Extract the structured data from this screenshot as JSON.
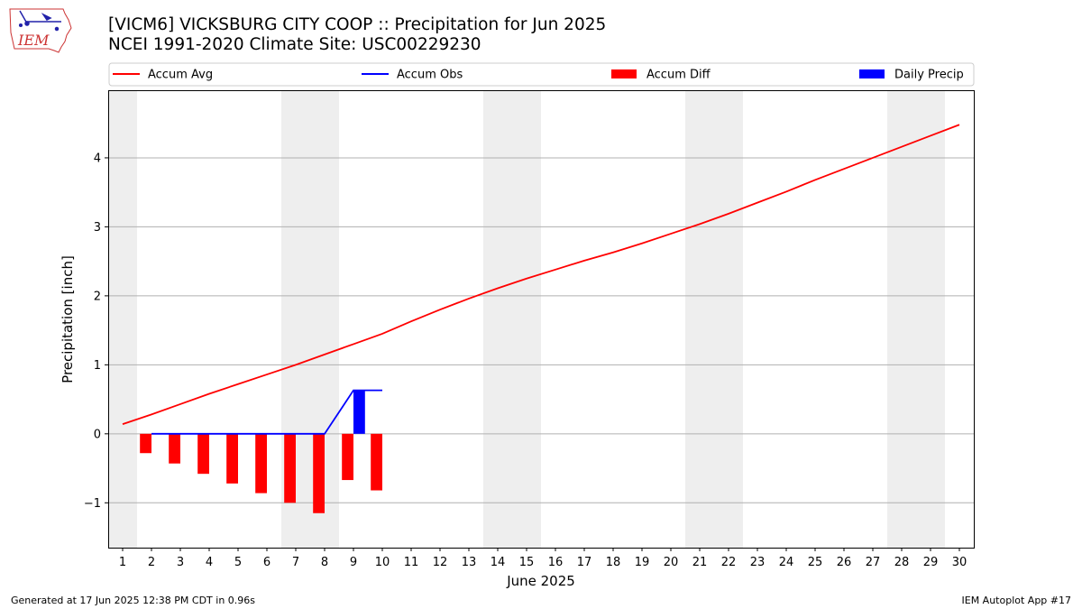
{
  "header": {
    "title_line1": "[VICM6] VICKSBURG CITY COOP :: Precipitation for Jun 2025",
    "title_line2": "NCEI 1991-2020 Climate Site: USC00229230",
    "logo_text": "IEM"
  },
  "footer": {
    "left": "Generated at 17 Jun 2025 12:38 PM CDT in 0.96s",
    "right": "IEM Autoplot App #17"
  },
  "colors": {
    "accum_avg": "#ff0000",
    "accum_obs": "#0000ff",
    "accum_diff": "#ff0000",
    "daily_precip": "#0000ff",
    "weekend_band": "#eeeeee",
    "grid": "#b0b0b0"
  },
  "chart_data": {
    "type": "line",
    "title": "[VICM6] VICKSBURG CITY COOP :: Precipitation for Jun 2025",
    "subtitle": "NCEI 1991-2020 Climate Site: USC00229230",
    "xlabel": "June 2025",
    "ylabel": "Precipitation [inch]",
    "xlim": [
      0.5,
      30.5
    ],
    "ylim": [
      -1.65,
      4.98
    ],
    "x": [
      1,
      2,
      3,
      4,
      5,
      6,
      7,
      8,
      9,
      10,
      11,
      12,
      13,
      14,
      15,
      16,
      17,
      18,
      19,
      20,
      21,
      22,
      23,
      24,
      25,
      26,
      27,
      28,
      29,
      30
    ],
    "x_tick_labels": [
      "1",
      "2",
      "3",
      "4",
      "5",
      "6",
      "7",
      "8",
      "9",
      "10",
      "11",
      "12",
      "13",
      "14",
      "15",
      "16",
      "17",
      "18",
      "19",
      "20",
      "21",
      "22",
      "23",
      "24",
      "25",
      "26",
      "27",
      "28",
      "29",
      "30"
    ],
    "y_ticks": [
      -1,
      0,
      1,
      2,
      3,
      4
    ],
    "y_tick_labels": [
      "−1",
      "0",
      "1",
      "2",
      "3",
      "4"
    ],
    "grid": "horizontal",
    "legend_position": "top",
    "shaded_weekends": [
      1,
      7,
      8,
      14,
      15,
      21,
      22,
      28,
      29
    ],
    "series": [
      {
        "name": "Accum Avg",
        "kind": "line",
        "x": [
          1,
          2,
          3,
          4,
          5,
          6,
          7,
          8,
          9,
          10,
          11,
          12,
          13,
          14,
          15,
          16,
          17,
          18,
          19,
          20,
          21,
          22,
          23,
          24,
          25,
          26,
          27,
          28,
          29,
          30
        ],
        "values": [
          0.14,
          0.28,
          0.43,
          0.58,
          0.72,
          0.86,
          1.0,
          1.15,
          1.3,
          1.45,
          1.63,
          1.8,
          1.96,
          2.11,
          2.25,
          2.38,
          2.51,
          2.63,
          2.76,
          2.9,
          3.04,
          3.19,
          3.35,
          3.51,
          3.68,
          3.84,
          4.0,
          4.16,
          4.32,
          4.48
        ]
      },
      {
        "name": "Accum Obs",
        "kind": "line",
        "x": [
          2,
          3,
          4,
          5,
          6,
          7,
          8,
          9,
          10
        ],
        "values": [
          0,
          0,
          0,
          0,
          0,
          0,
          0,
          0.63,
          0.63
        ]
      },
      {
        "name": "Accum Diff",
        "kind": "bar",
        "x": [
          2,
          3,
          4,
          5,
          6,
          7,
          8,
          9,
          10
        ],
        "values": [
          -0.28,
          -0.43,
          -0.58,
          -0.72,
          -0.86,
          -1.0,
          -1.15,
          -0.67,
          -0.82
        ]
      },
      {
        "name": "Daily Precip",
        "kind": "bar",
        "x": [
          9
        ],
        "values": [
          0.63
        ]
      }
    ]
  }
}
